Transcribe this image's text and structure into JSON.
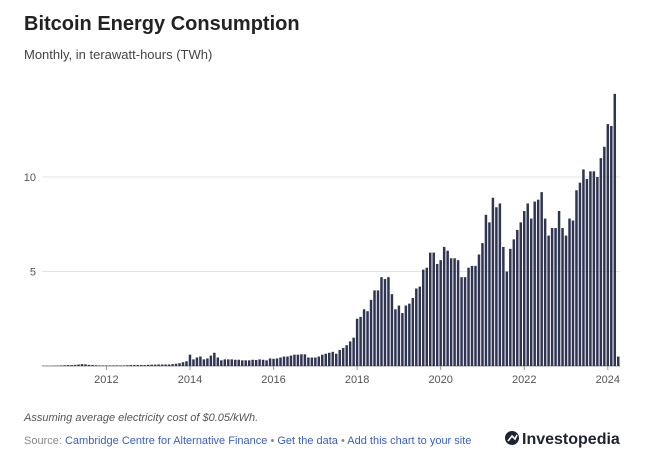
{
  "chart_data": {
    "type": "bar",
    "title": "Bitcoin Energy Consumption",
    "subtitle": "Monthly, in terawatt-hours (TWh)",
    "categories": [
      null,
      null,
      null,
      null,
      null,
      null,
      null,
      null,
      null,
      null,
      null,
      null,
      null,
      null,
      null,
      null,
      null,
      null,
      "2012",
      null,
      null,
      null,
      null,
      null,
      null,
      null,
      null,
      null,
      null,
      null,
      null,
      null,
      null,
      null,
      null,
      null,
      null,
      null,
      null,
      null,
      null,
      null,
      "2014",
      null,
      null,
      null,
      null,
      null,
      null,
      null,
      null,
      null,
      null,
      null,
      null,
      null,
      null,
      null,
      null,
      null,
      null,
      null,
      null,
      null,
      null,
      null,
      "2016",
      null,
      null,
      null,
      null,
      null,
      null,
      null,
      null,
      null,
      null,
      null,
      null,
      null,
      null,
      null,
      null,
      null,
      null,
      null,
      null,
      null,
      null,
      null,
      "2018",
      null,
      null,
      null,
      null,
      null,
      null,
      null,
      null,
      null,
      null,
      null,
      null,
      null,
      null,
      null,
      null,
      null,
      null,
      null,
      null,
      null,
      null,
      null,
      "2020",
      null,
      null,
      null,
      null,
      null,
      null,
      null,
      null,
      null,
      null,
      null,
      null,
      null,
      null,
      null,
      null,
      null,
      null,
      null,
      null,
      null,
      null,
      null,
      "2022",
      null,
      null,
      null,
      null,
      null,
      null,
      null,
      null,
      null,
      null,
      null,
      null,
      null,
      null,
      null,
      null,
      null,
      null,
      null,
      null,
      null,
      null,
      null,
      "2024",
      null,
      null,
      null
    ],
    "values": [
      0.01,
      0.01,
      0.01,
      0.02,
      0.02,
      0.03,
      0.04,
      0.05,
      0.05,
      0.06,
      0.08,
      0.1,
      0.09,
      0.06,
      0.05,
      0.04,
      0.03,
      0.03,
      0.03,
      0.03,
      0.03,
      0.03,
      0.03,
      0.03,
      0.04,
      0.05,
      0.05,
      0.05,
      0.05,
      0.05,
      0.06,
      0.07,
      0.07,
      0.08,
      0.08,
      0.08,
      0.08,
      0.1,
      0.12,
      0.15,
      0.2,
      0.25,
      0.6,
      0.35,
      0.45,
      0.5,
      0.35,
      0.4,
      0.55,
      0.7,
      0.45,
      0.3,
      0.35,
      0.35,
      0.35,
      0.33,
      0.33,
      0.3,
      0.3,
      0.3,
      0.33,
      0.32,
      0.35,
      0.33,
      0.3,
      0.4,
      0.38,
      0.4,
      0.45,
      0.5,
      0.5,
      0.55,
      0.6,
      0.6,
      0.62,
      0.62,
      0.45,
      0.45,
      0.45,
      0.5,
      0.6,
      0.65,
      0.7,
      0.75,
      0.65,
      0.85,
      0.95,
      1.1,
      1.3,
      1.5,
      2.5,
      2.6,
      3.0,
      2.9,
      3.5,
      4.0,
      4.0,
      4.7,
      4.6,
      4.7,
      3.8,
      3.0,
      3.2,
      2.8,
      3.2,
      3.3,
      3.6,
      4.1,
      4.2,
      5.1,
      5.2,
      6.0,
      6.0,
      5.4,
      5.6,
      6.3,
      6.1,
      5.7,
      5.7,
      5.6,
      4.7,
      4.7,
      5.2,
      5.3,
      5.3,
      5.9,
      6.5,
      8.0,
      7.6,
      8.9,
      8.4,
      8.6,
      6.3,
      5.0,
      6.2,
      6.7,
      7.2,
      7.6,
      8.2,
      8.6,
      7.8,
      8.7,
      8.8,
      9.2,
      7.8,
      6.9,
      7.3,
      7.3,
      8.2,
      7.3,
      6.9,
      7.8,
      7.7,
      9.3,
      9.7,
      10.4,
      9.9,
      10.3,
      10.3,
      10.0,
      11.0,
      11.6,
      12.8,
      12.7,
      14.4,
      0.5
    ],
    "color": "#2f3452",
    "ylim": [
      0,
      15
    ],
    "yticks": [
      5,
      10
    ],
    "grid": true,
    "note": "Assuming average electricity cost of $0.05/kWh.",
    "source_label": "Source:",
    "separator": "•",
    "links": [
      "Cambridge Centre for Alternative Finance",
      "Get the data",
      "Add this chart to your site"
    ],
    "logo": "Investopedia"
  }
}
